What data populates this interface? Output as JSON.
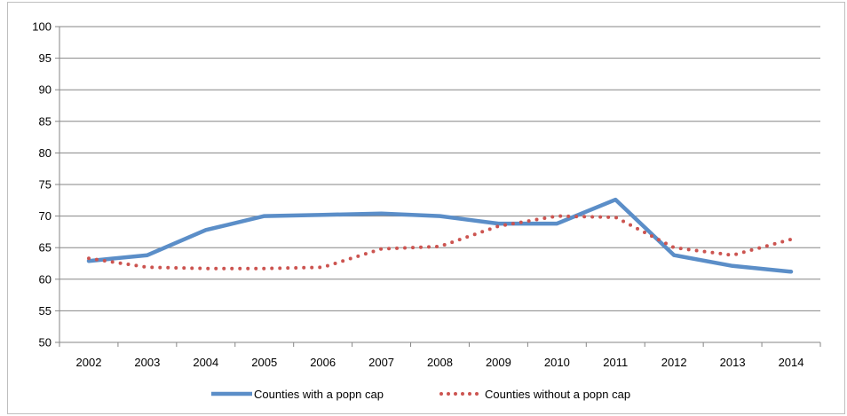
{
  "chart_data": {
    "type": "line",
    "categories": [
      "2002",
      "2003",
      "2004",
      "2005",
      "2006",
      "2007",
      "2008",
      "2009",
      "2010",
      "2011",
      "2012",
      "2013",
      "2014"
    ],
    "ylim": [
      50,
      100
    ],
    "yticks": [
      50,
      55,
      60,
      65,
      70,
      75,
      80,
      85,
      90,
      95,
      100
    ],
    "grid": true,
    "legend_position": "bottom",
    "series": [
      {
        "name": "Counties with a popn cap",
        "values": [
          62.9,
          63.8,
          67.8,
          70.0,
          70.2,
          70.4,
          70.0,
          68.8,
          68.8,
          72.6,
          63.8,
          62.1,
          61.2
        ],
        "color": "#5b8ec8",
        "style": "solid"
      },
      {
        "name": "Counties without a popn cap",
        "values": [
          63.3,
          61.9,
          61.7,
          61.7,
          61.9,
          64.8,
          65.2,
          68.4,
          70.0,
          69.8,
          65.0,
          63.8,
          66.3
        ],
        "color": "#cc5450",
        "style": "dotted"
      }
    ]
  }
}
